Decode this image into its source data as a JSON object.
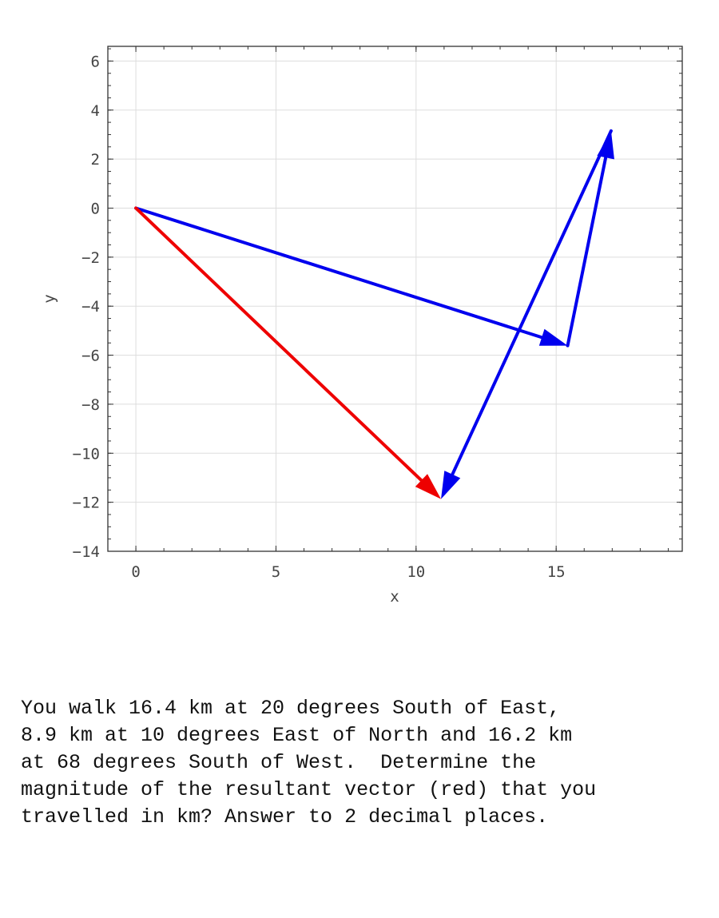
{
  "chart_data": {
    "type": "vector-plot",
    "xlabel": "x",
    "ylabel": "y",
    "xlim": [
      -1,
      19.5
    ],
    "ylim": [
      -14,
      6.6
    ],
    "xticks": [
      0,
      5,
      10,
      15
    ],
    "yticks": [
      6,
      4,
      2,
      0,
      -2,
      -4,
      -6,
      -8,
      -10,
      -12,
      -14
    ],
    "grid": true,
    "vectors": [
      {
        "from": [
          0,
          0
        ],
        "to": [
          15.41,
          -5.61
        ],
        "color": "#0000ee"
      },
      {
        "from": [
          15.41,
          -5.61
        ],
        "to": [
          16.96,
          3.15
        ],
        "color": "#0000ee"
      },
      {
        "from": [
          16.96,
          3.15
        ],
        "to": [
          10.89,
          -11.87
        ],
        "color": "#0000ee"
      },
      {
        "from": [
          0,
          0
        ],
        "to": [
          10.89,
          -11.87
        ],
        "color": "#ee0000"
      }
    ]
  },
  "question": {
    "text": "You walk 16.4 km at 20 degrees South of East,\n8.9 km at 10 degrees East of North and 16.2 km\nat 68 degrees South of West.  Determine the\nmagnitude of the resultant vector (red) that you\ntravelled in km? Answer to 2 decimal places."
  }
}
